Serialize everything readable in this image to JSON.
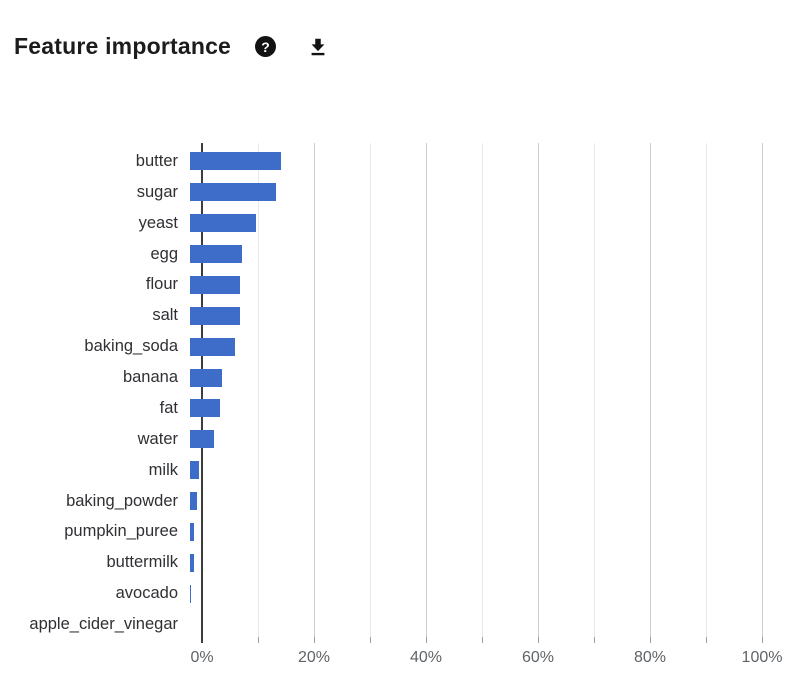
{
  "header": {
    "title": "Feature importance",
    "help_icon": "help",
    "download_icon": "download"
  },
  "chart_data": {
    "type": "bar",
    "orientation": "horizontal",
    "title": "Feature importance",
    "categories": [
      "butter",
      "sugar",
      "yeast",
      "egg",
      "flour",
      "salt",
      "baking_soda",
      "banana",
      "fat",
      "water",
      "milk",
      "baking_powder",
      "pumpkin_puree",
      "buttermilk",
      "avocado",
      "apple_cider_vinegar"
    ],
    "values": [
      16.3,
      15.3,
      11.8,
      9.3,
      9.0,
      8.9,
      8.0,
      5.8,
      5.3,
      4.3,
      1.6,
      1.3,
      0.8,
      0.8,
      0.05,
      0
    ],
    "value_unit": "%",
    "xlabel": "",
    "ylabel": "",
    "x_ticks": [
      "0%",
      "20%",
      "40%",
      "60%",
      "80%",
      "100%"
    ],
    "x_tick_values": [
      0,
      20,
      40,
      60,
      80,
      100
    ],
    "xlim": [
      0,
      100
    ],
    "grid": "vertical gridlines every 10%, major every 20%, legend none",
    "bar_color": "#3d6cc9",
    "axis_color": "#3c3c3c",
    "major_grid_color": "#cdcdcd",
    "minor_grid_color": "#eaeaea",
    "tick_color": "#9aa0a6",
    "tick_label_color": "#5f6368",
    "category_label_color": "#2f3033"
  }
}
